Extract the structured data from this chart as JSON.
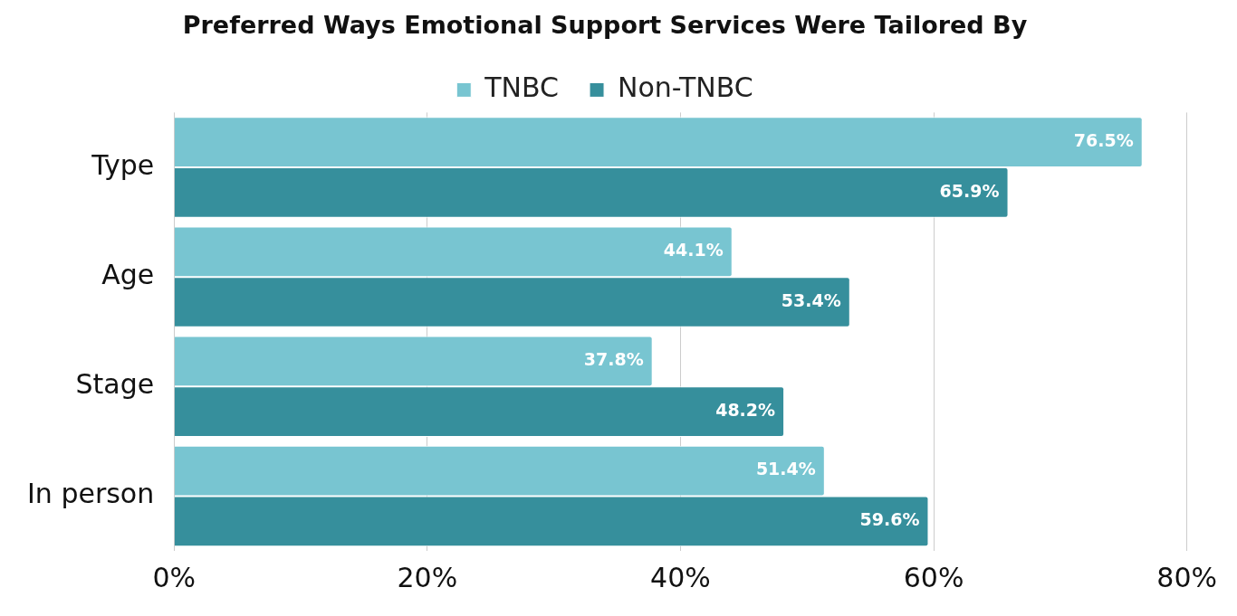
{
  "chart_data": {
    "type": "bar",
    "orientation": "horizontal",
    "title": "Preferred Ways Emotional Support Services Were Tailored By",
    "categories": [
      "Type",
      "Age",
      "Stage",
      "In person"
    ],
    "series": [
      {
        "name": "TNBC",
        "color": "#78c5d1",
        "values": [
          76.5,
          44.1,
          37.8,
          51.4
        ],
        "value_labels": [
          "76.5%",
          "44.1%",
          "37.8%",
          "51.4%"
        ]
      },
      {
        "name": "Non-TNBC",
        "color": "#368f9c",
        "values": [
          65.9,
          53.4,
          48.2,
          59.6
        ],
        "value_labels": [
          "65.9%",
          "53.4%",
          "48.2%",
          "59.6%"
        ]
      }
    ],
    "xlim": [
      0,
      80
    ],
    "xticks": [
      {
        "value": 0,
        "label": "0%"
      },
      {
        "value": 20,
        "label": "20%"
      },
      {
        "value": 40,
        "label": "40%"
      },
      {
        "value": 60,
        "label": "60%"
      },
      {
        "value": 80,
        "label": "80%"
      }
    ],
    "grid": "x",
    "legend": "top"
  }
}
